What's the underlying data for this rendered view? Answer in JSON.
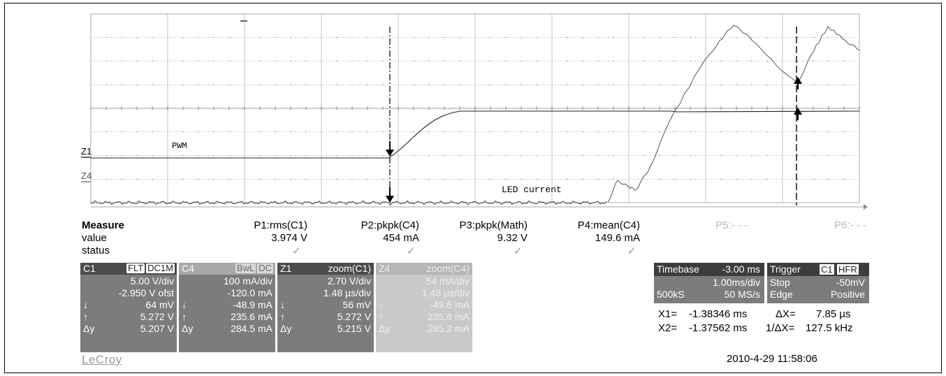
{
  "traces": {
    "pwm_label": "PWM",
    "led_label": "LED current",
    "marker_z1": "Z1",
    "marker_z4": "Z4"
  },
  "measure": {
    "title": "Measure",
    "row_value": "value",
    "row_status": "status",
    "params": [
      {
        "label": "P1:rms(C1)",
        "value": "3.974 V",
        "status": "✓"
      },
      {
        "label": "P2:pkpk(C4)",
        "value": "454 mA",
        "status": "✓"
      },
      {
        "label": "P3:pkpk(Math)",
        "value": "9.32 V",
        "status": "✓"
      },
      {
        "label": "P4:mean(C4)",
        "value": "149.6 mA",
        "status": "✓"
      },
      {
        "label": "P5:- - -"
      },
      {
        "label": "P6:- - -"
      }
    ]
  },
  "channels": {
    "c1": {
      "name": "C1",
      "tag1": "FLT",
      "tag2": "DC1M",
      "vdiv": "5.00 V/div",
      "ofst": "-2.950 V ofst",
      "down_sym": "↓",
      "down": "64 mV",
      "up_sym": "↑",
      "up": "5.272 V",
      "dy_sym": "Δy",
      "dy": "5.207 V"
    },
    "c4": {
      "name": "C4",
      "tag1": "BwL",
      "tag2": "DC",
      "vdiv": "100 mA/div",
      "ofst": "-120.0 mA",
      "down_sym": "↓",
      "down": "-48.9 mA",
      "up_sym": "↑",
      "up": "235.6 mA",
      "dy_sym": "Δy",
      "dy": "284.5 mA"
    },
    "z1": {
      "name": "Z1",
      "zoom": "zoom(C1)",
      "vdiv": "2.70 V/div",
      "tdiv": "1.48 µs/div",
      "down_sym": "↓",
      "down": "56 mV",
      "up_sym": "↑",
      "up": "5.272 V",
      "dy_sym": "Δy",
      "dy": "5.215 V"
    },
    "z4": {
      "name": "Z4",
      "zoom": "zoom(C4)",
      "vdiv": "54 mA/div",
      "tdiv": "1.48 µs/div",
      "down_sym": "↓",
      "down": "-49.6 mA",
      "up_sym": "↑",
      "up": "235.6 mA",
      "dy_sym": "Δy",
      "dy": "285.2 mA"
    }
  },
  "timebase": {
    "label": "Timebase",
    "delay": "-3.00 ms",
    "tdiv": "1.00ms/div",
    "samples": "500kS",
    "rate": "50 MS/s"
  },
  "trigger": {
    "label": "Trigger",
    "src": "C1",
    "mode_tag": "HFR",
    "state": "Stop",
    "level": "-50mV",
    "type": "Edge",
    "slope": "Positive"
  },
  "cursors": {
    "x1_label": "X1=",
    "x1": "-1.38346 ms",
    "dx_label": "ΔX=",
    "dx": "7.85 µs",
    "x2_label": "X2=",
    "x2": "-1.37562 ms",
    "inv_label": "1/ΔX=",
    "inv": "127.5 kHz"
  },
  "brand": "LeCroy",
  "datetime": "2010-4-29 11:58:06"
}
